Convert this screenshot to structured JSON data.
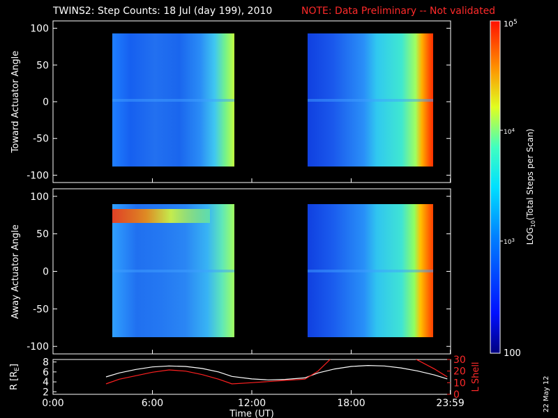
{
  "header": {
    "title": "TWINS2: Step Counts: 18 Jul (day 199), 2010",
    "note": "NOTE: Data Preliminary -- Not validated"
  },
  "date_stamp": "22 May 12",
  "colors": {
    "note": "#ff2a2a",
    "r_line": "#ffffff",
    "l_line": "#ff2020",
    "frame": "#ffffff"
  },
  "chart_data": [
    {
      "type": "heatmap",
      "ylabel": "Toward Actuator Angle",
      "ylim": [
        -110,
        110
      ],
      "yticks": [
        100,
        50,
        0,
        -50,
        -100
      ],
      "xlim": [
        0,
        24
      ],
      "blocks": [
        {
          "t_start": 3.2,
          "t_end": 10.8,
          "a_min": -88,
          "a_max": 90
        },
        {
          "t_start": 15.2,
          "t_end": 23.8,
          "a_min": -88,
          "a_max": 90
        }
      ]
    },
    {
      "type": "heatmap",
      "ylabel": "Away Actuator Angle",
      "ylim": [
        -110,
        110
      ],
      "yticks": [
        100,
        50,
        0,
        -50,
        -100
      ],
      "xlim": [
        0,
        24
      ],
      "blocks": [
        {
          "t_start": 3.2,
          "t_end": 10.8,
          "a_min": -88,
          "a_max": 90
        },
        {
          "t_start": 15.2,
          "t_end": 23.8,
          "a_min": -88,
          "a_max": 90
        }
      ]
    },
    {
      "type": "line",
      "xlabel": "Time (UT)",
      "xticks": [
        "0:00",
        "6:00",
        "12:00",
        "18:00",
        "23:59"
      ],
      "xtick_hours": [
        0,
        6,
        12,
        18,
        23.983
      ],
      "left_axis": {
        "label": "R [RE]",
        "label_main": "R [R",
        "label_sub": "E",
        "label_end": "]",
        "ylim": [
          1.5,
          8.5
        ],
        "ticks": [
          8,
          6,
          4,
          2
        ]
      },
      "right_axis": {
        "label": "L Shell",
        "ylim": [
          0,
          30
        ],
        "ticks": [
          30,
          20,
          10,
          0
        ]
      },
      "series": [
        {
          "axis": "left",
          "x": [
            3.2,
            4,
            5,
            6,
            7,
            8,
            9,
            10,
            10.8,
            12,
            13,
            14,
            15.2,
            16,
            17,
            18,
            19,
            20,
            21,
            22,
            23,
            23.8
          ],
          "values": [
            5.0,
            5.8,
            6.5,
            7.0,
            7.2,
            7.1,
            6.7,
            6.0,
            5.1,
            4.6,
            4.4,
            4.5,
            4.8,
            5.8,
            6.6,
            7.1,
            7.3,
            7.2,
            6.8,
            6.2,
            5.4,
            4.6
          ]
        },
        {
          "axis": "right",
          "x": [
            3.2,
            4,
            5,
            6,
            7,
            8,
            9,
            10,
            10.8,
            12,
            13,
            14,
            15.2,
            16,
            16.8,
            21.8,
            23,
            23.8
          ],
          "values": [
            9,
            13,
            16,
            19,
            21,
            20,
            17,
            13,
            9,
            10,
            11,
            12,
            13,
            20,
            31,
            31,
            22,
            15
          ]
        }
      ]
    }
  ],
  "colorbar": {
    "label_pre": "LOG",
    "label_sub": "10",
    "label_post": "(Total Steps per Scan)",
    "range": [
      100,
      100000
    ],
    "tick_top_base": "10",
    "tick_top_exp": "5",
    "tick_mid_base": "10",
    "tick_mid_exp": "4",
    "tick_low_base": "10",
    "tick_low_exp": "3",
    "tick_bottom": "100",
    "ticks_log": [
      5,
      4,
      3,
      2
    ]
  }
}
